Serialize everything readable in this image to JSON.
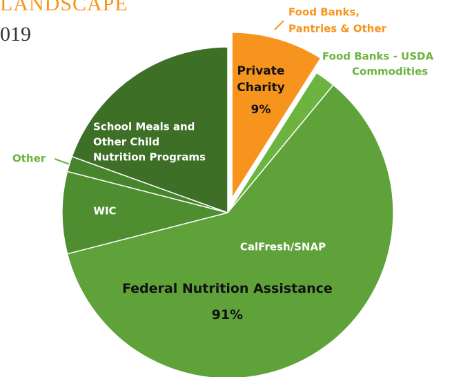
{
  "chart_data": {
    "type": "pie",
    "title": "LANDSCAPE",
    "subtitle": "019",
    "categories": [
      [
        "Food Banks,",
        "Pantries & Other"
      ],
      [
        "Food Banks - USDA",
        "Commodities"
      ],
      [
        "CalFresh/SNAP"
      ],
      [
        "WIC"
      ],
      [
        "Other"
      ],
      [
        "School Meals and",
        "Other Child",
        "Nutrition Programs"
      ]
    ],
    "values": [
      9,
      2,
      60,
      8,
      1.5,
      19.5
    ],
    "colors": [
      "#f7941d",
      "#6cb33f",
      "#5fa23a",
      "#4e8e31",
      "#47852d",
      "#3d6f27"
    ],
    "groups": {
      "names": [
        [
          "Private",
          "Charity"
        ],
        [
          "Federal Nutrition Assistance"
        ]
      ],
      "values": [
        9,
        91
      ],
      "value_labels": [
        "9%",
        "91%"
      ]
    }
  }
}
